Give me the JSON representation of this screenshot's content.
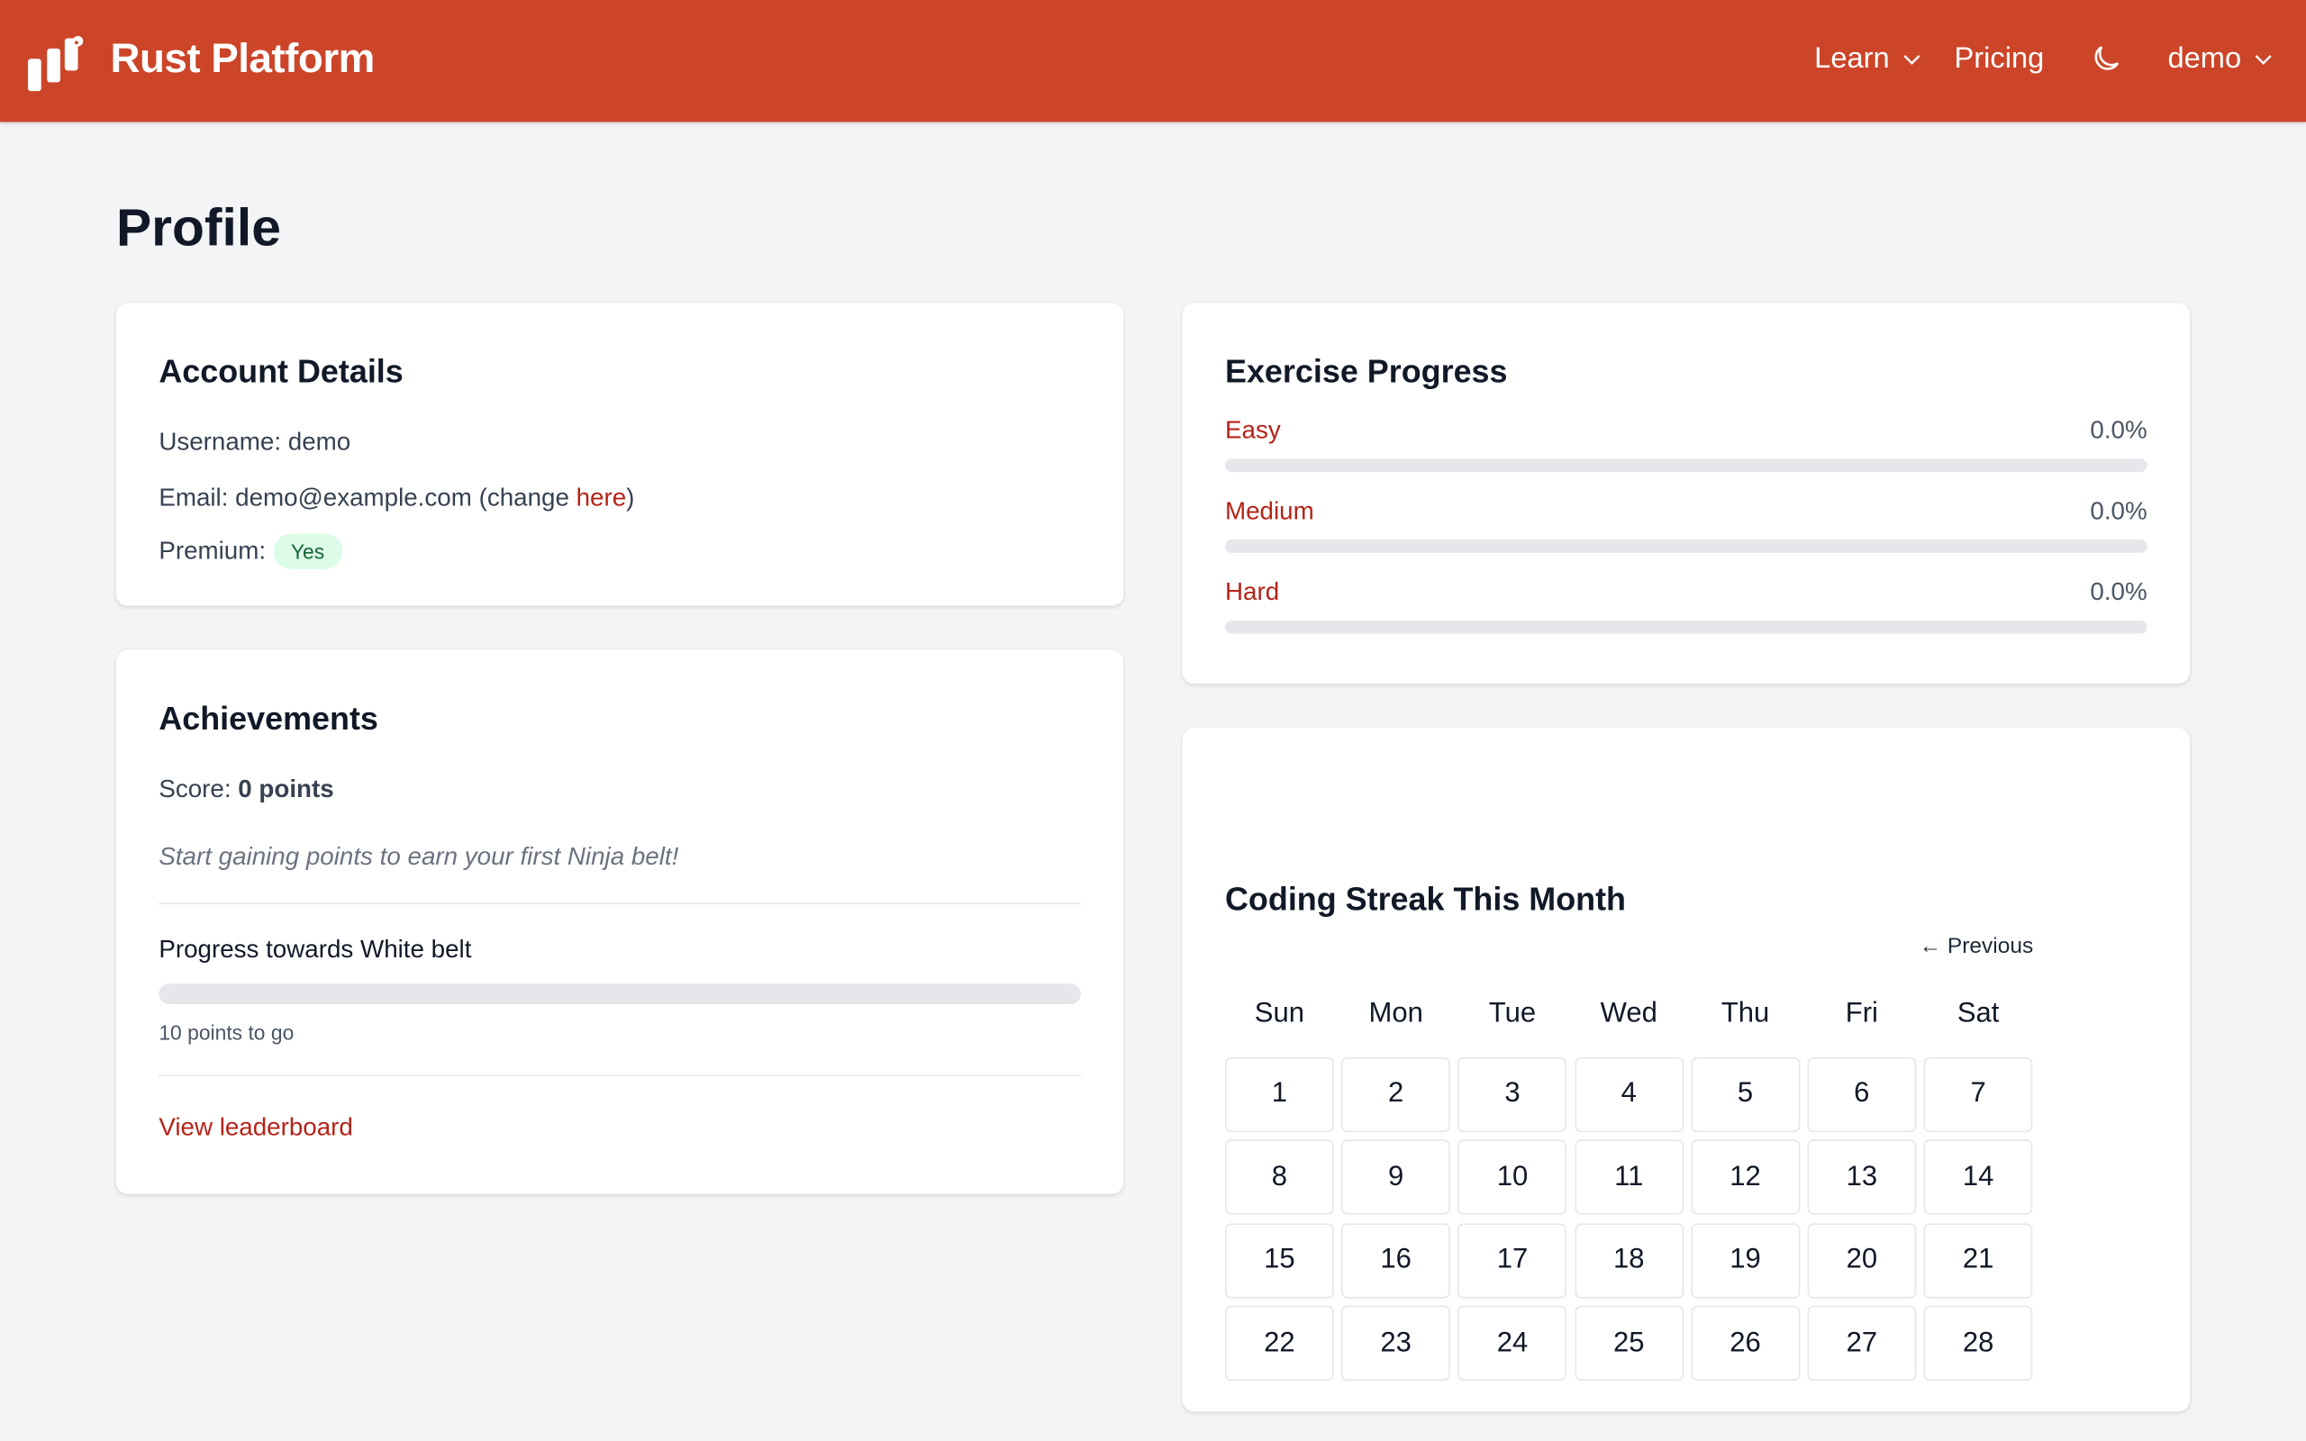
{
  "header": {
    "brand": "Rust Platform",
    "learn": "Learn",
    "pricing": "Pricing",
    "user": "demo",
    "brand_color": "#cc4529"
  },
  "page_title": "Profile",
  "account": {
    "title": "Account Details",
    "username_label": "Username:",
    "username": "demo",
    "email_label": "Email:",
    "email": "demo@example.com",
    "change_prefix": "(change",
    "change_link": "here",
    "change_suffix": ")",
    "premium_label": "Premium:",
    "premium": "Yes"
  },
  "achievements": {
    "title": "Achievements",
    "score_label": "Score:",
    "score": "0 points",
    "hint": "Start gaining points to earn your first Ninja belt!",
    "progress_title": "Progress towards White belt",
    "progress": 0,
    "to_go": "10 points to go",
    "leaderboard": "View leaderboard"
  },
  "exercise": {
    "title": "Exercise Progress",
    "items": [
      {
        "label": "Easy",
        "value": "0.0%",
        "pct": 0
      },
      {
        "label": "Medium",
        "value": "0.0%",
        "pct": 0
      },
      {
        "label": "Hard",
        "value": "0.0%",
        "pct": 0
      }
    ]
  },
  "calendar": {
    "title": "Coding Streak This Month",
    "previous": "← Previous",
    "days": [
      "Sun",
      "Mon",
      "Tue",
      "Wed",
      "Thu",
      "Fri",
      "Sat"
    ],
    "dates": [
      "1",
      "2",
      "3",
      "4",
      "5",
      "6",
      "7",
      "8",
      "9",
      "10",
      "11",
      "12",
      "13",
      "14",
      "15",
      "16",
      "17",
      "18",
      "19",
      "20",
      "21",
      "22",
      "23",
      "24",
      "25",
      "26",
      "27",
      "28"
    ]
  }
}
